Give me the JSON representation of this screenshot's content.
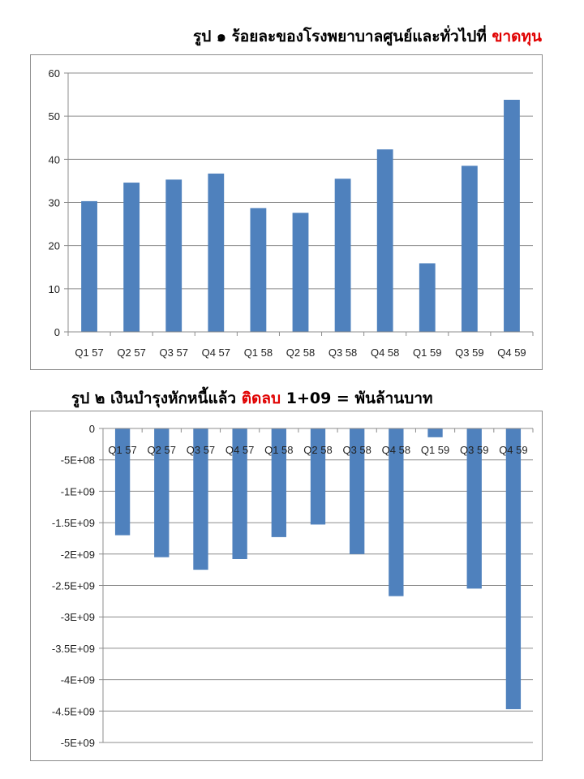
{
  "titles": [
    {
      "prefix": "รูป ๑ ร้อยละของโรงพยาบาลศูนย์และทั่วไปที่ ",
      "highlight": "ขาดทุน",
      "suffix": ""
    },
    {
      "prefix": "รูป ๒ เงินบำรุงหักหนี้แล้ว ",
      "highlight": "ติดลบ",
      "suffix": " 1+09 = พันล้านบาท"
    }
  ],
  "colors": {
    "bar": "#4f81bd",
    "grid": "#8c8c8c",
    "highlight": "#e00000"
  },
  "chart_data": [
    {
      "type": "bar",
      "categories": [
        "Q1 57",
        "Q2 57",
        "Q3 57",
        "Q4 57",
        "Q1 58",
        "Q2 58",
        "Q3 58",
        "Q4 58",
        "Q1 59",
        "Q3 59",
        "Q4 59"
      ],
      "values": [
        30.3,
        34.6,
        35.3,
        36.7,
        28.7,
        27.6,
        35.5,
        42.3,
        15.9,
        38.5,
        53.8
      ],
      "ylim": [
        0,
        60
      ],
      "yticks": [
        0,
        10,
        20,
        30,
        40,
        50,
        60
      ],
      "ytick_labels": [
        "0",
        "10",
        "20",
        "30",
        "40",
        "50",
        "60"
      ],
      "grid": true
    },
    {
      "type": "bar",
      "categories": [
        "Q1 57",
        "Q2 57",
        "Q3 57",
        "Q4 57",
        "Q1 58",
        "Q2 58",
        "Q3 58",
        "Q4 58",
        "Q1 59",
        "Q3 59",
        "Q4 59"
      ],
      "values": [
        -1700000000,
        -2050000000,
        -2250000000,
        -2080000000,
        -1730000000,
        -1530000000,
        -2000000000,
        -2670000000,
        -140000000,
        -2550000000,
        -4470000000
      ],
      "ylim": [
        -5000000000,
        0
      ],
      "yticks": [
        0,
        -500000000,
        -1000000000,
        -1500000000,
        -2000000000,
        -2500000000,
        -3000000000,
        -3500000000,
        -4000000000,
        -4500000000,
        -5000000000
      ],
      "ytick_labels": [
        "0",
        "-5E+08",
        "-1E+09",
        "-1.5E+09",
        "-2E+09",
        "-2.5E+09",
        "-3E+09",
        "-3.5E+09",
        "-4E+09",
        "-4.5E+09",
        "-5E+09"
      ],
      "grid": true
    }
  ]
}
